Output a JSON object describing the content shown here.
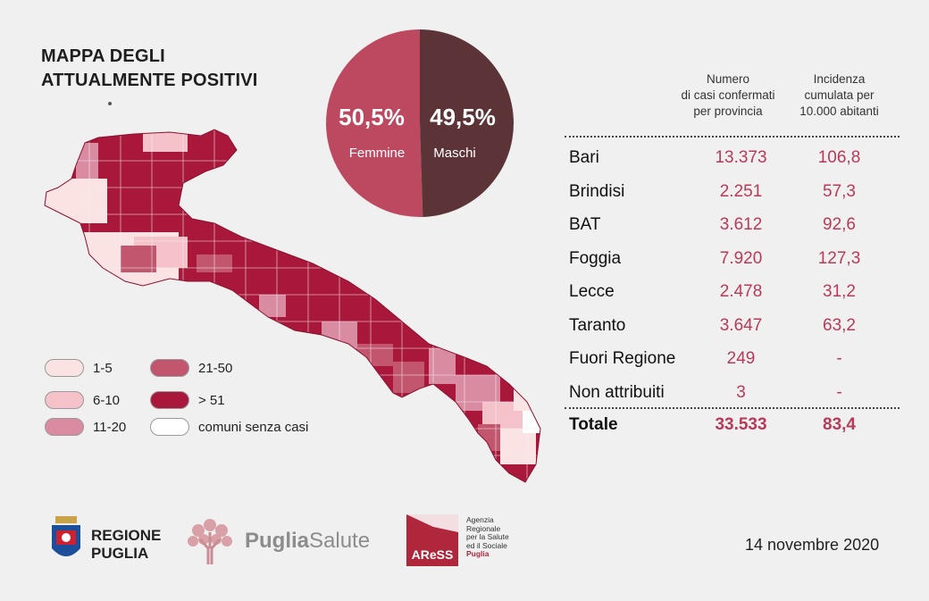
{
  "title": [
    "MAPPA DEGLI",
    "ATTUALMENTE POSITIVI"
  ],
  "chart_data": [
    {
      "type": "pie",
      "slices": [
        {
          "label": "Femmine",
          "value": 50.5,
          "value_label": "50,5%",
          "color": "#bd4961"
        },
        {
          "label": "Maschi",
          "value": 49.5,
          "value_label": "49,5%",
          "color": "#5c3438"
        }
      ]
    },
    {
      "type": "table",
      "columns": [
        "",
        "Numero\ndi casi confermati\nper provincia",
        "Incidenza\ncumulata per\n10.000 abitanti"
      ],
      "rows": [
        [
          "Bari",
          "13.373",
          "106,8"
        ],
        [
          "Brindisi",
          "2.251",
          "57,3"
        ],
        [
          "BAT",
          "3.612",
          "92,6"
        ],
        [
          "Foggia",
          "7.920",
          "127,3"
        ],
        [
          "Lecce",
          "2.478",
          "31,2"
        ],
        [
          "Taranto",
          "3.647",
          "63,2"
        ],
        [
          "Fuori Regione",
          "249",
          "-"
        ],
        [
          "Non attribuiti",
          "3",
          "-"
        ]
      ],
      "total": [
        "Totale",
        "33.533",
        "83,4"
      ]
    }
  ],
  "legend": [
    {
      "label": "1-5",
      "color": "#fbe3e3"
    },
    {
      "label": "6-10",
      "color": "#f4c2c8"
    },
    {
      "label": "11-20",
      "color": "#d98ba1"
    },
    {
      "label": "21-50",
      "color": "#c2566f"
    },
    {
      "label": "> 51",
      "color": "#a9173a"
    },
    {
      "label": "comuni senza casi",
      "color": "#ffffff"
    }
  ],
  "logos": {
    "regione": [
      "REGIONE",
      "PUGLIA"
    ],
    "puglia_salute": [
      "Puglia",
      "Salute"
    ],
    "aress_mark": "AReSS",
    "aress_text": [
      "Agenzia",
      "Regionale",
      "per la Salute",
      "ed il Sociale",
      "Puglia"
    ]
  },
  "date": "14 novembre 2020"
}
